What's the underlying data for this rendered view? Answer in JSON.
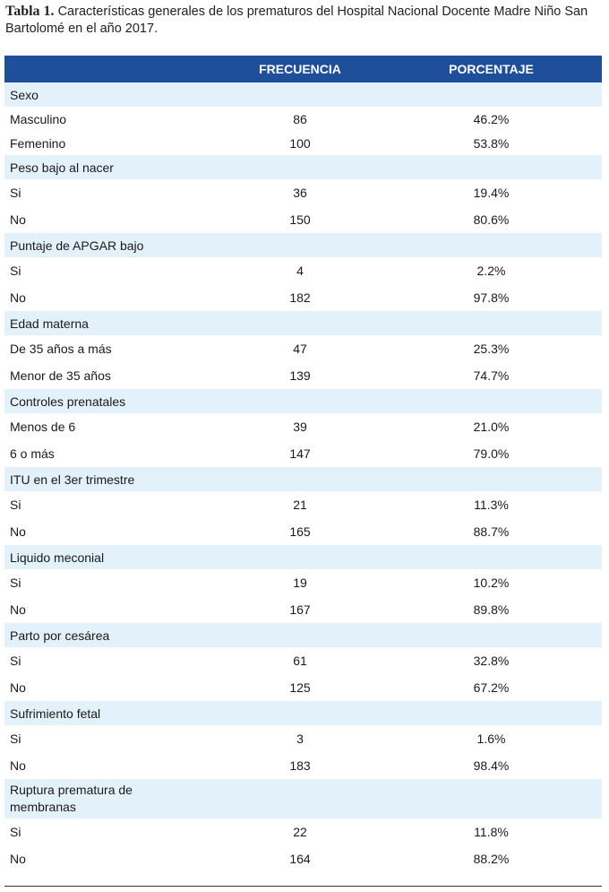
{
  "caption": {
    "label": "Tabla 1.",
    "text": "Características generales de los prematuros del Hospital Nacional Docente Madre Niño San Bartolomé en el año 2017."
  },
  "table": {
    "headers": [
      "",
      "FRECUENCIA",
      "PORCENTAJE"
    ],
    "groups": [
      {
        "title": "Sexo",
        "rows": [
          {
            "label": "Masculino",
            "freq": "86",
            "pct": "46.2%"
          },
          {
            "label": "Femenino",
            "freq": "100",
            "pct": "53.8%"
          }
        ]
      },
      {
        "title": "Peso bajo al nacer",
        "rows": [
          {
            "label": "Si",
            "freq": "36",
            "pct": "19.4%"
          },
          {
            "label": "No",
            "freq": "150",
            "pct": "80.6%"
          }
        ]
      },
      {
        "title": "Puntaje de APGAR bajo",
        "rows": [
          {
            "label": "Si",
            "freq": "4",
            "pct": "2.2%"
          },
          {
            "label": "No",
            "freq": "182",
            "pct": "97.8%"
          }
        ]
      },
      {
        "title": "Edad materna",
        "rows": [
          {
            "label": "De 35 años a más",
            "freq": "47",
            "pct": "25.3%"
          },
          {
            "label": "Menor de 35 años",
            "freq": "139",
            "pct": "74.7%"
          }
        ]
      },
      {
        "title": "Controles prenatales",
        "rows": [
          {
            "label": "Menos de 6",
            "freq": "39",
            "pct": "21.0%"
          },
          {
            "label": "6 o más",
            "freq": "147",
            "pct": "79.0%"
          }
        ]
      },
      {
        "title": "ITU en el 3er trimestre",
        "rows": [
          {
            "label": "Si",
            "freq": "21",
            "pct": "11.3%"
          },
          {
            "label": "No",
            "freq": "165",
            "pct": "88.7%"
          }
        ]
      },
      {
        "title": "Liquido meconial",
        "rows": [
          {
            "label": "Si",
            "freq": "19",
            "pct": "10.2%"
          },
          {
            "label": "No",
            "freq": "167",
            "pct": "89.8%"
          }
        ]
      },
      {
        "title": "Parto por cesárea",
        "rows": [
          {
            "label": "Si",
            "freq": "61",
            "pct": "32.8%"
          },
          {
            "label": "No",
            "freq": "125",
            "pct": "67.2%"
          }
        ]
      },
      {
        "title": "Sufrimiento fetal",
        "rows": [
          {
            "label": "Si",
            "freq": "3",
            "pct": "1.6%"
          },
          {
            "label": "No",
            "freq": "183",
            "pct": "98.4%"
          }
        ]
      },
      {
        "title": "Ruptura prematura de membranas",
        "rows": [
          {
            "label": "Si",
            "freq": "22",
            "pct": "11.8%"
          },
          {
            "label": "No",
            "freq": "164",
            "pct": "88.2%"
          }
        ]
      }
    ]
  }
}
